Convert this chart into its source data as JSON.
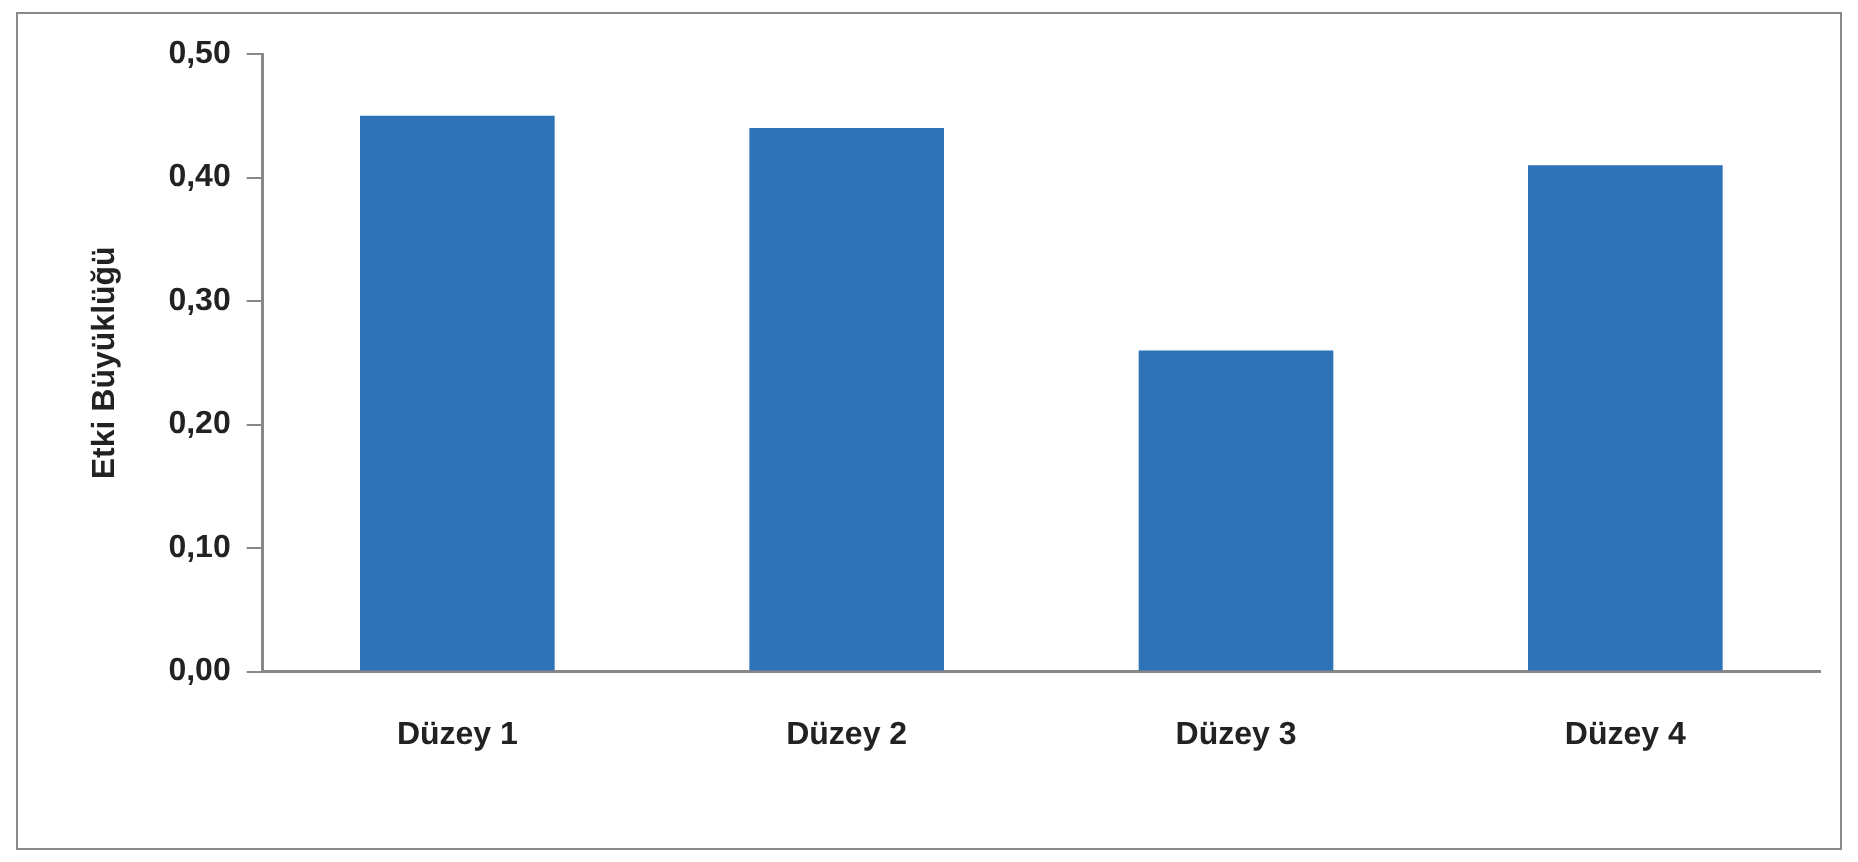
{
  "chart_data": {
    "type": "bar",
    "ylabel": "Etki Büyüklüğü",
    "categories": [
      "Düzey 1",
      "Düzey 2",
      "Düzey 3",
      "Düzey 4"
    ],
    "values": [
      0.45,
      0.44,
      0.26,
      0.41
    ],
    "color": "#2e72b8",
    "ylim": [
      0,
      0.5
    ],
    "yticks": [
      {
        "value": 0,
        "label": "0,00"
      },
      {
        "value": 0.1,
        "label": "0,10"
      },
      {
        "value": 0.2,
        "label": "0,20"
      },
      {
        "value": 0.3,
        "label": "0,30"
      },
      {
        "value": 0.4,
        "label": "0,40"
      },
      {
        "value": 0.5,
        "label": "0,50"
      }
    ],
    "grid": false,
    "legend": false
  }
}
